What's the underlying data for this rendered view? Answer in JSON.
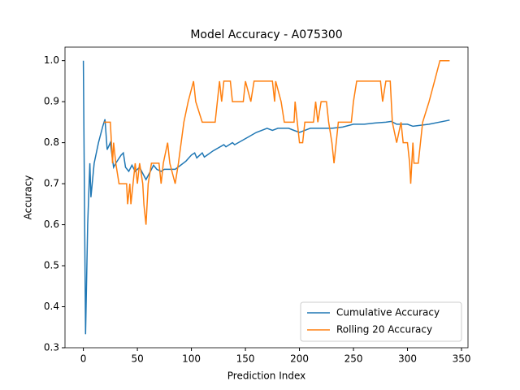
{
  "chart_data": {
    "type": "line",
    "title": "Model Accuracy - A075300",
    "x_label": "Prediction Index",
    "y_label": "Accuracy",
    "xlim": [
      -17,
      356
    ],
    "ylim": [
      0.3,
      1.033
    ],
    "xticks": [
      0,
      50,
      100,
      150,
      200,
      250,
      300,
      350
    ],
    "yticks": [
      0.3,
      0.4,
      0.5,
      0.6,
      0.7,
      0.8,
      0.9,
      {
        "value": 1,
        "label": "1.0"
      }
    ],
    "legend": "lower right",
    "series": [
      {
        "name": "Cumulative Accuracy",
        "color": "#1f77b4",
        "x": [
          0,
          2,
          4,
          6,
          7,
          10,
          14,
          18,
          20,
          22,
          25,
          28,
          30,
          35,
          37,
          39,
          42,
          45,
          48,
          52,
          55,
          58,
          62,
          65,
          68,
          72,
          75,
          80,
          85,
          90,
          95,
          100,
          103,
          105,
          110,
          112,
          120,
          130,
          132,
          138,
          140,
          150,
          160,
          170,
          175,
          180,
          190,
          195,
          200,
          210,
          220,
          230,
          240,
          250,
          260,
          270,
          280,
          285,
          290,
          300,
          305,
          320,
          339
        ],
        "values": [
          1.0,
          0.333,
          0.6,
          0.75,
          0.667,
          0.75,
          0.8,
          0.84,
          0.857,
          0.783,
          0.8,
          0.74,
          0.75,
          0.77,
          0.775,
          0.74,
          0.73,
          0.745,
          0.73,
          0.74,
          0.725,
          0.71,
          0.73,
          0.745,
          0.735,
          0.73,
          0.735,
          0.735,
          0.735,
          0.745,
          0.755,
          0.77,
          0.775,
          0.763,
          0.775,
          0.765,
          0.78,
          0.795,
          0.79,
          0.8,
          0.795,
          0.81,
          0.825,
          0.835,
          0.83,
          0.835,
          0.835,
          0.83,
          0.825,
          0.835,
          0.835,
          0.835,
          0.838,
          0.845,
          0.845,
          0.848,
          0.85,
          0.852,
          0.845,
          0.845,
          0.84,
          0.845,
          0.855
        ]
      },
      {
        "name": "Rolling 20 Accuracy",
        "color": "#ff7f0e",
        "x": [
          19,
          25,
          27,
          28,
          30,
          33,
          40,
          41,
          43,
          44,
          48,
          50,
          52,
          55,
          56,
          58,
          60,
          63,
          70,
          72,
          74,
          78,
          80,
          85,
          88,
          93,
          97,
          102,
          104,
          110,
          122,
          124,
          126,
          128,
          130,
          136,
          138,
          148,
          150,
          155,
          158,
          175,
          177,
          178,
          183,
          186,
          195,
          196,
          198,
          200,
          203,
          205,
          213,
          215,
          217,
          220,
          225,
          227,
          230,
          232,
          234,
          236,
          248,
          250,
          253,
          275,
          277,
          280,
          284,
          286,
          290,
          294,
          296,
          300,
          302,
          303,
          305,
          306,
          310,
          312,
          314,
          320,
          325,
          330,
          339
        ],
        "values": [
          0.85,
          0.85,
          0.75,
          0.8,
          0.75,
          0.7,
          0.7,
          0.65,
          0.7,
          0.65,
          0.75,
          0.7,
          0.75,
          0.7,
          0.65,
          0.6,
          0.7,
          0.75,
          0.75,
          0.7,
          0.75,
          0.8,
          0.75,
          0.7,
          0.75,
          0.85,
          0.9,
          0.95,
          0.9,
          0.85,
          0.85,
          0.9,
          0.95,
          0.9,
          0.95,
          0.95,
          0.9,
          0.9,
          0.95,
          0.9,
          0.95,
          0.95,
          0.9,
          0.95,
          0.9,
          0.85,
          0.85,
          0.9,
          0.85,
          0.8,
          0.8,
          0.85,
          0.85,
          0.9,
          0.85,
          0.9,
          0.9,
          0.85,
          0.8,
          0.75,
          0.8,
          0.85,
          0.85,
          0.9,
          0.95,
          0.95,
          0.9,
          0.95,
          0.95,
          0.85,
          0.8,
          0.85,
          0.8,
          0.8,
          0.75,
          0.7,
          0.8,
          0.75,
          0.75,
          0.8,
          0.85,
          0.9,
          0.95,
          1.0,
          1.0
        ]
      }
    ]
  }
}
